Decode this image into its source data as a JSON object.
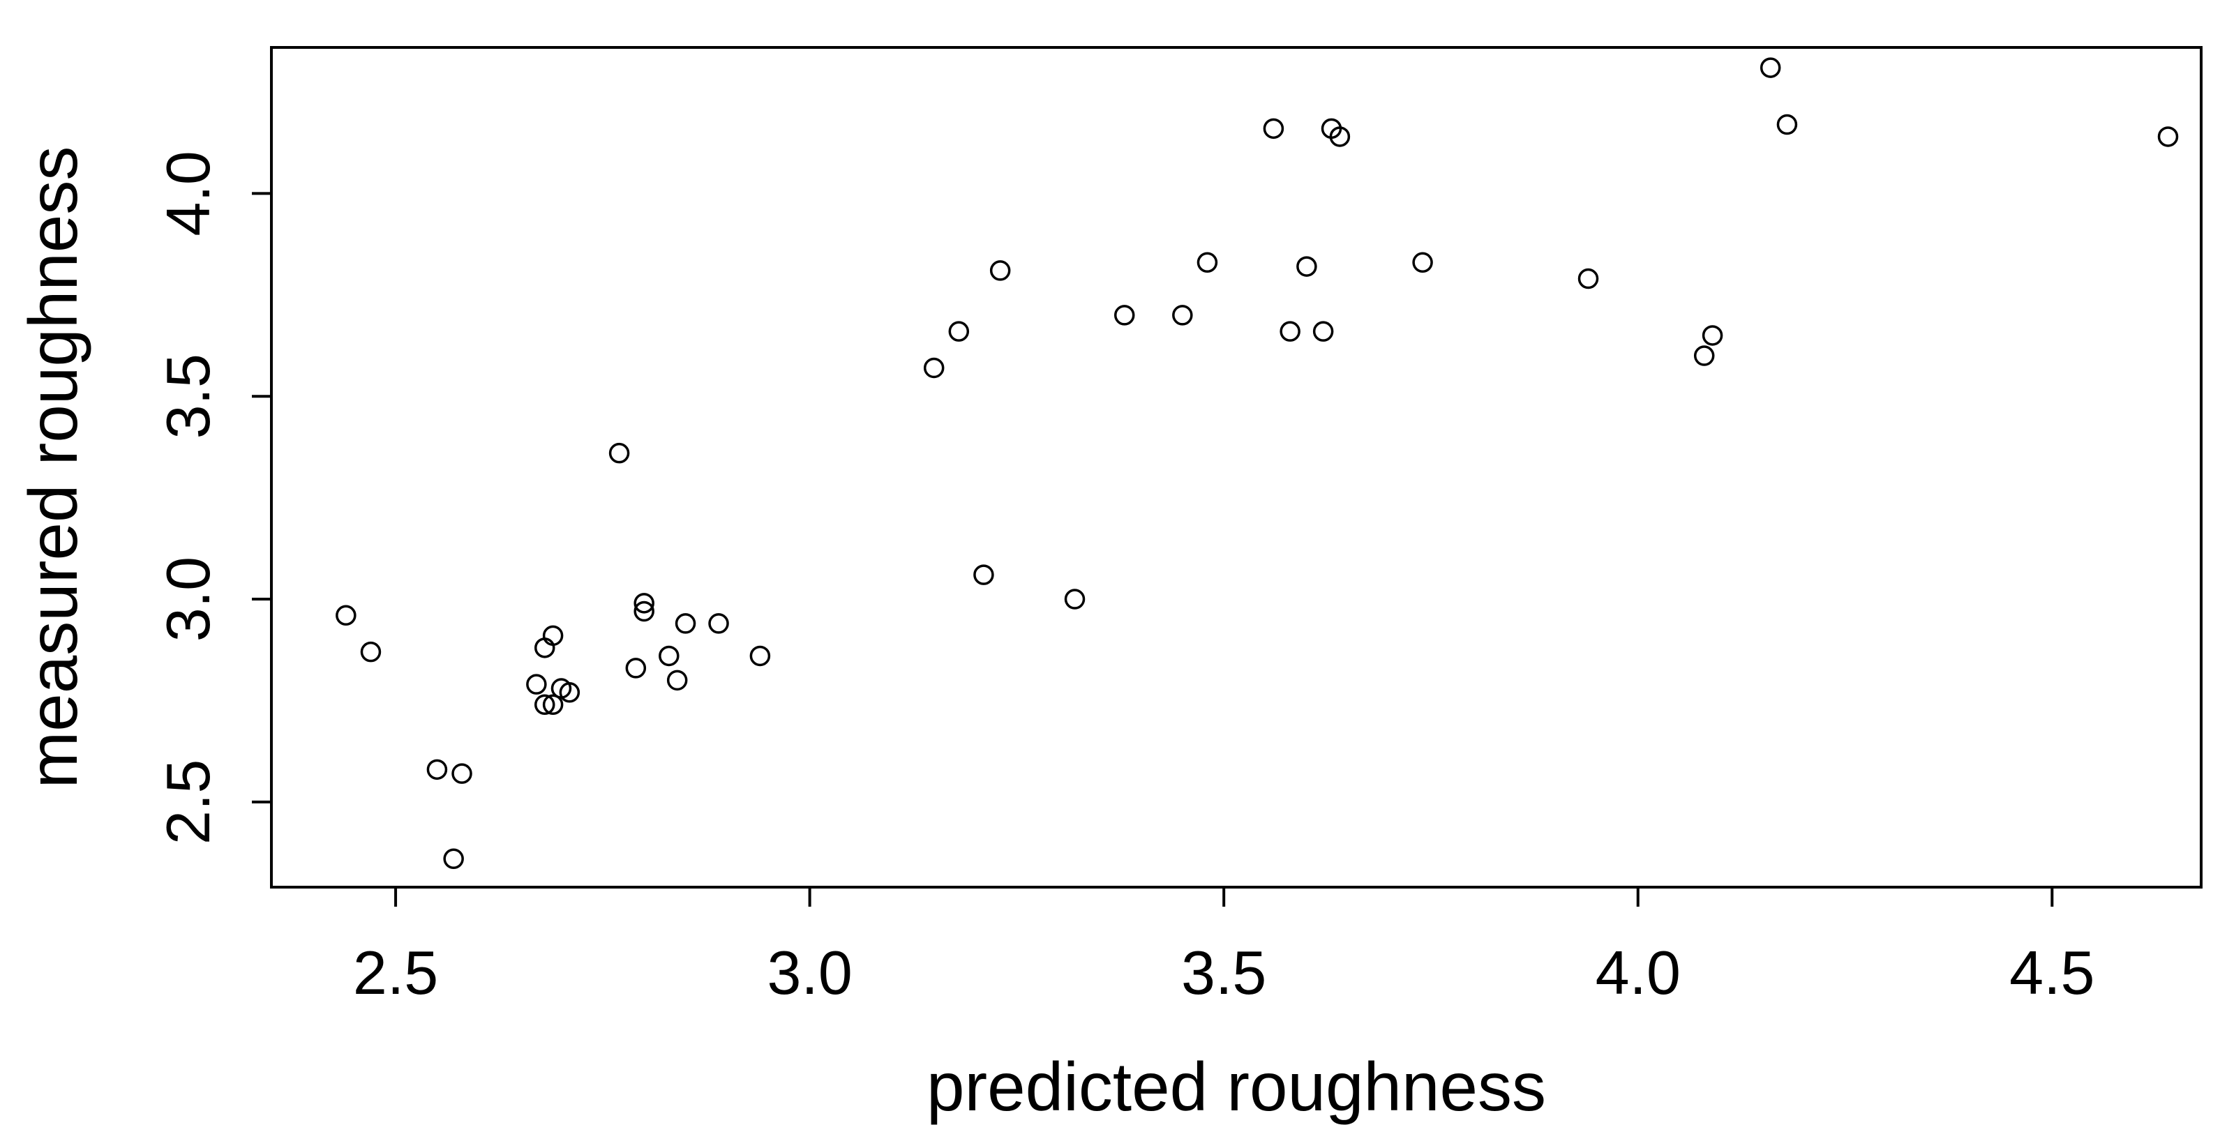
{
  "chart_data": {
    "type": "scatter",
    "xlabel": "predicted roughness",
    "ylabel": "measured roughness",
    "xlim": [
      2.35,
      4.68
    ],
    "ylim": [
      2.29,
      4.36
    ],
    "xticks": [
      2.5,
      3.0,
      3.5,
      4.0,
      4.5
    ],
    "xtick_labels": [
      "2.5",
      "3.0",
      "3.5",
      "4.0",
      "4.5"
    ],
    "yticks": [
      2.5,
      3.0,
      3.5,
      4.0
    ],
    "ytick_labels": [
      "2.5",
      "3.0",
      "3.5",
      "4.0"
    ],
    "grid": false,
    "marker": "open-circle",
    "colors": {
      "marker": "#000000",
      "axis": "#000000",
      "background": "#ffffff"
    },
    "points": [
      [
        2.44,
        2.96
      ],
      [
        2.47,
        2.87
      ],
      [
        2.55,
        2.58
      ],
      [
        2.58,
        2.57
      ],
      [
        2.57,
        2.36
      ],
      [
        2.67,
        2.79
      ],
      [
        2.68,
        2.74
      ],
      [
        2.69,
        2.74
      ],
      [
        2.7,
        2.78
      ],
      [
        2.71,
        2.77
      ],
      [
        2.68,
        2.88
      ],
      [
        2.69,
        2.91
      ],
      [
        2.77,
        3.36
      ],
      [
        2.79,
        2.83
      ],
      [
        2.8,
        2.99
      ],
      [
        2.8,
        2.97
      ],
      [
        2.83,
        2.86
      ],
      [
        2.84,
        2.8
      ],
      [
        2.85,
        2.94
      ],
      [
        2.89,
        2.94
      ],
      [
        2.94,
        2.86
      ],
      [
        3.15,
        3.57
      ],
      [
        3.18,
        3.66
      ],
      [
        3.21,
        3.06
      ],
      [
        3.23,
        3.81
      ],
      [
        3.32,
        3.0
      ],
      [
        3.38,
        3.7
      ],
      [
        3.45,
        3.7
      ],
      [
        3.48,
        3.83
      ],
      [
        3.56,
        4.16
      ],
      [
        3.58,
        3.66
      ],
      [
        3.6,
        3.82
      ],
      [
        3.62,
        3.66
      ],
      [
        3.63,
        4.16
      ],
      [
        3.64,
        4.14
      ],
      [
        3.74,
        3.83
      ],
      [
        3.94,
        3.79
      ],
      [
        4.08,
        3.6
      ],
      [
        4.09,
        3.65
      ],
      [
        4.16,
        4.31
      ],
      [
        4.18,
        4.17
      ],
      [
        4.64,
        4.14
      ]
    ]
  }
}
